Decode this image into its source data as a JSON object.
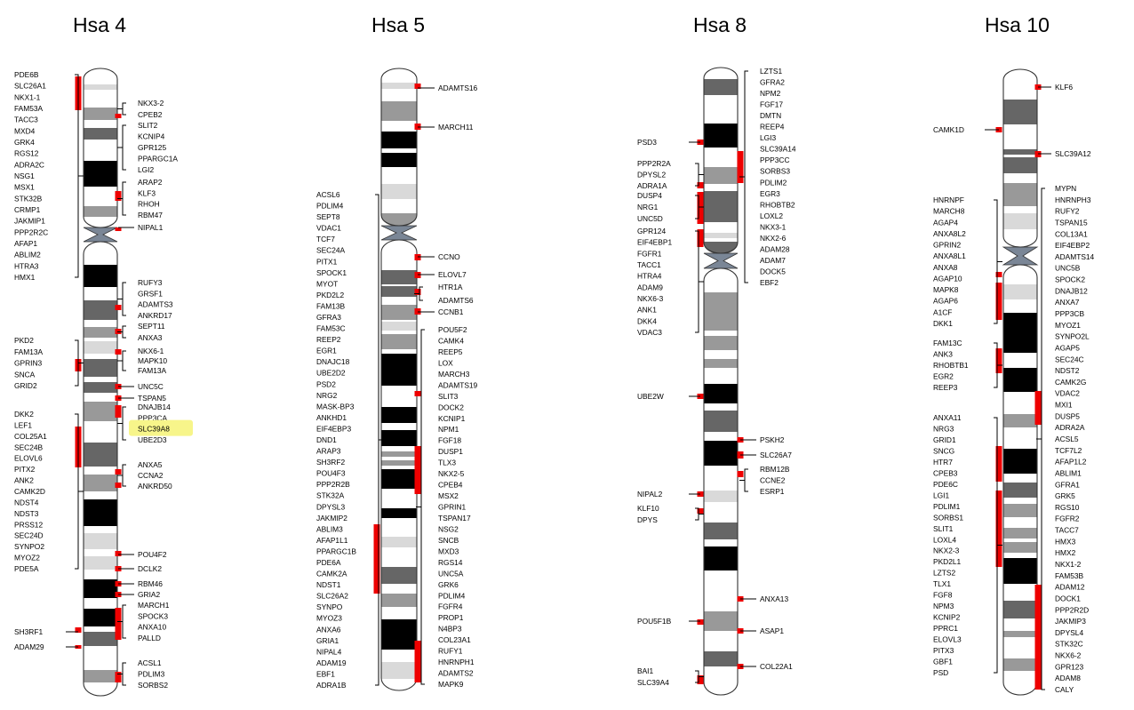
{
  "colors": {
    "outline": "#333333",
    "black_band": "#000000",
    "dark_gray_band": "#666666",
    "mid_gray_band": "#999999",
    "light_gray_band": "#d9d9d9",
    "centromere": "#7a8696",
    "marker": "#ee0000",
    "highlight": "#f7f58a"
  },
  "chromosomes": [
    {
      "id": "hsa4",
      "title": "Hsa 4",
      "left_genes": [
        [
          "PDE6B",
          "SLC26A1",
          "NKX1-1",
          "FAM53A",
          "TACC3",
          "MXD4",
          "GRK4",
          "RGS12",
          "ADRA2C",
          "NSG1",
          "MSX1",
          "STK32B",
          "CRMP1",
          "JAKMIP1",
          "PPP2R2C",
          "AFAP1",
          "ABLIM2",
          "HTRA3",
          "HMX1"
        ],
        [
          "PKD2",
          "FAM13A",
          "GPRIN3",
          "SNCA",
          "GRID2"
        ],
        [
          "DKK2",
          "LEF1",
          "COL25A1",
          "SEC24B",
          "ELOVL6",
          "PITX2",
          "ANK2",
          "CAMK2D",
          "NDST4",
          "NDST3",
          "PRSS12",
          "SEC24D",
          "SYNPO2",
          "MYOZ2",
          "PDE5A"
        ],
        [
          "SH3RF1"
        ],
        [
          "ADAM29"
        ]
      ],
      "right_genes": [
        [
          "NKX3-2",
          "CPEB2"
        ],
        [
          "SLIT2",
          "KCNIP4",
          "GPR125",
          "PPARGC1A",
          "LGI2"
        ],
        [
          "ARAP2",
          "KLF3",
          "RHOH",
          "RBM47"
        ],
        [
          "NIPAL1"
        ],
        [
          "RUFY3",
          "GRSF1",
          "ADAMTS3",
          "ANKRD17"
        ],
        [
          "SEPT11",
          "ANXA3"
        ],
        [
          "NKX6-1",
          "MAPK10",
          "FAM13A"
        ],
        [
          "UNC5C"
        ],
        [
          "TSPAN5"
        ],
        [
          "DNAJB14",
          "PPP3CA",
          "SLC39A8",
          "UBE2D3"
        ],
        [
          "ANXA5",
          "CCNA2",
          "ANKRD50"
        ],
        [
          "POU4F2"
        ],
        [
          "DCLK2"
        ],
        [
          "RBM46"
        ],
        [
          "GRIA2"
        ],
        [
          "MARCH1",
          "SPOCK3",
          "ANXA10",
          "PALLD"
        ],
        [
          "ACSL1",
          "PDLIM3",
          "SORBS2"
        ]
      ],
      "highlighted_gene": "SLC39A8"
    },
    {
      "id": "hsa5",
      "title": "Hsa 5",
      "left_genes": [
        [
          "ACSL6",
          "PDLIM4",
          "SEPT8",
          "VDAC1",
          "TCF7",
          "SEC24A",
          "PITX1",
          "SPOCK1",
          "MYOT",
          "PKD2L2",
          "FAM13B",
          "GFRA3",
          "FAM53C",
          "REEP2",
          "EGR1",
          "DNAJC18",
          "UBE2D2",
          "PSD2",
          "NRG2",
          "MASK-BP3",
          "ANKHD1",
          "EIF4EBP3",
          "DND1",
          "ARAP3",
          "SH3RF2",
          "POU4F3",
          "PPP2R2B",
          "STK32A",
          "DPYSL3",
          "JAKMIP2",
          "ABLIM3",
          "AFAP1L1",
          "PPARGC1B",
          "PDE6A",
          "CAMK2A",
          "NDST1",
          "SLC26A2",
          "SYNPO",
          "MYOZ3",
          "ANXA6",
          "GRIA1",
          "NIPAL4",
          "ADAM19",
          "EBF1",
          "ADRA1B"
        ]
      ],
      "right_genes": [
        [
          "ADAMTS16"
        ],
        [
          "MARCH11"
        ],
        [
          "CCNO"
        ],
        [
          "ELOVL7"
        ],
        [
          "HTR1A",
          "ADAMTS6"
        ],
        [
          "CCNB1"
        ],
        [
          "POU5F2",
          "CAMK4",
          "REEP5",
          "LOX",
          "MARCH3",
          "ADAMTS19",
          "SLIT3",
          "DOCK2",
          "KCNIP1",
          "NPM1",
          "FGF18",
          "DUSP1",
          "TLX3",
          "NKX2-5",
          "CPEB4",
          "MSX2",
          "GPRIN1",
          "TSPAN17",
          "NSG2",
          "SNCB",
          "MXD3",
          "RGS14",
          "UNC5A",
          "GRK6",
          "PDLIM4",
          "FGFR4",
          "PROP1",
          "N4BP3",
          "COL23A1",
          "RUFY1",
          "HNRNPH1",
          "ADAMTS2",
          "MAPK9"
        ]
      ]
    },
    {
      "id": "hsa8",
      "title": "Hsa 8",
      "left_genes": [
        [
          "PSD3"
        ],
        [
          "PPP2R2A",
          "DPYSL2",
          "ADRA1A"
        ],
        [
          "DUSP4",
          "NRG1",
          "UNC5D"
        ],
        [
          "GPR124",
          "EIF4EBP1",
          "FGFR1",
          "TACC1",
          "HTRA4",
          "ADAM9",
          "NKX6-3",
          "ANK1",
          "DKK4",
          "VDAC3"
        ],
        [
          "UBE2W"
        ],
        [
          "NIPAL2"
        ],
        [
          "KLF10",
          "DPYS"
        ],
        [
          "POU5F1B"
        ],
        [
          "BAI1",
          "SLC39A4"
        ]
      ],
      "right_genes": [
        [
          "LZTS1",
          "GFRA2",
          "NPM2",
          "FGF17",
          "DMTN",
          "REEP4",
          "LGI3",
          "SLC39A14",
          "PPP3CC",
          "SORBS3",
          "PDLIM2",
          "EGR3",
          "RHOBTB2",
          "LOXL2",
          "NKX3-1",
          "NKX2-6",
          "ADAM28",
          "ADAM7",
          "DOCK5",
          "EBF2"
        ],
        [
          "PSKH2"
        ],
        [
          "SLC26A7"
        ],
        [
          "RBM12B",
          "CCNE2",
          "ESRP1"
        ],
        [
          "ANXA13"
        ],
        [
          "ASAP1"
        ],
        [
          "COL22A1"
        ]
      ]
    },
    {
      "id": "hsa10",
      "title": "Hsa 10",
      "left_genes": [
        [
          "CAMK1D"
        ],
        [
          "HNRNPF",
          "MARCH8",
          "AGAP4",
          "ANXA8L2",
          "GPRIN2",
          "ANXA8L1",
          "ANXA8",
          "AGAP10",
          "MAPK8",
          "AGAP6",
          "A1CF",
          "DKK1"
        ],
        [
          "FAM13C",
          "ANK3",
          "RHOBTB1",
          "EGR2",
          "REEP3"
        ],
        [
          "ANXA11",
          "NRG3",
          "GRID1",
          "SNCG",
          "HTR7",
          "CPEB3",
          "PDE6C",
          "LGI1",
          "PDLIM1",
          "SORBS1",
          "SLIT1",
          "LOXL4",
          "NKX2-3",
          "PKD2L1",
          "LZTS2",
          "TLX1",
          "FGF8",
          "NPM3",
          "KCNIP2",
          "PPRC1",
          "ELOVL3",
          "PITX3",
          "GBF1",
          "PSD"
        ]
      ],
      "right_genes": [
        [
          "KLF6"
        ],
        [
          "SLC39A12"
        ],
        [
          "MYPN",
          "HNRNPH3",
          "RUFY2",
          "TSPAN15",
          "COL13A1",
          "EIF4EBP2",
          "ADAMTS14",
          "UNC5B",
          "SPOCK2",
          "DNAJB12",
          "ANXA7",
          "PPP3CB",
          "MYOZ1",
          "SYNPO2L",
          "AGAP5",
          "SEC24C",
          "NDST2",
          "CAMK2G",
          "VDAC2",
          "MXI1",
          "DUSP5",
          "ADRA2A",
          "ACSL5",
          "TCF7L2",
          "AFAP1L2",
          "ABLIM1",
          "GFRA1",
          "GRK5",
          "RGS10",
          "FGFR2",
          "TACC7",
          "HMX3",
          "HMX2",
          "NKX1-2",
          "FAM53B",
          "ADAM12",
          "DOCK1",
          "PPP2R2D",
          "JAKMIP3",
          "DPYSL4",
          "STK32C",
          "NKX6-2",
          "GPR123",
          "ADAM8",
          "CALY"
        ]
      ]
    }
  ]
}
